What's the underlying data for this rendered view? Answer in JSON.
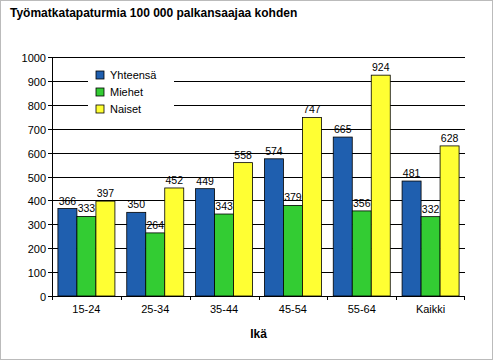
{
  "chart_data": {
    "type": "bar",
    "title": "Työmatkatapaturmia 100 000 palkansaajaa kohden",
    "x_label": "Ikä",
    "categories": [
      "15-24",
      "25-34",
      "35-44",
      "45-54",
      "55-64",
      "Kaikki"
    ],
    "series": [
      {
        "name": "Yhteensä",
        "color": "#1f5faf",
        "values": [
          366,
          350,
          449,
          574,
          665,
          481
        ]
      },
      {
        "name": "Miehet",
        "color": "#33cc33",
        "values": [
          333,
          264,
          343,
          379,
          356,
          332
        ]
      },
      {
        "name": "Naiset",
        "color": "#ffff33",
        "values": [
          397,
          452,
          558,
          747,
          924,
          628
        ]
      }
    ],
    "ylim": [
      0,
      1000
    ],
    "yticks": [
      0,
      100,
      200,
      300,
      400,
      500,
      600,
      700,
      800,
      900,
      1000
    ],
    "grid": true,
    "legend": "top-left",
    "data_labels": true
  }
}
